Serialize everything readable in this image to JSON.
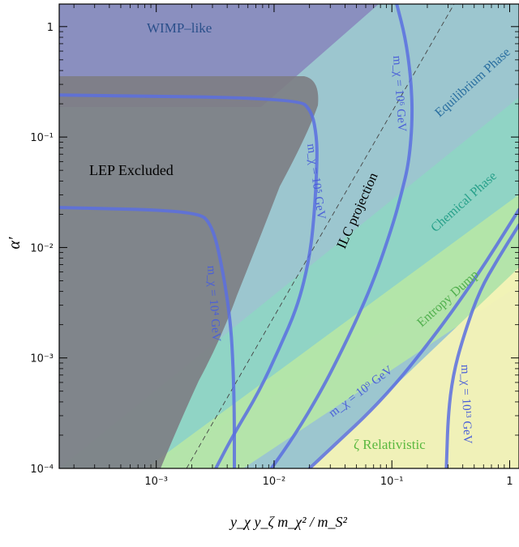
{
  "chart_data": {
    "type": "area",
    "xscale": "log",
    "yscale": "log",
    "xlim": [
      0.00015,
      1.2
    ],
    "ylim": [
      0.0001,
      1.6
    ],
    "xlabel": "y_χ y_ζ m_χ² / m_S²",
    "ylabel": "α′",
    "x_ticks": [
      "10⁻³",
      "10⁻²",
      "10⁻¹",
      "1"
    ],
    "y_ticks": [
      "10⁻⁴",
      "10⁻³",
      "10⁻²",
      "10⁻¹",
      "1"
    ],
    "regions": [
      {
        "name": "WIMP–like",
        "color": "#8a8fbf"
      },
      {
        "name": "LEP Excluded",
        "color": "#7d7d83"
      },
      {
        "name": "Equilibrium Phase",
        "color": "#9cc6cf"
      },
      {
        "name": "Chemical Phase",
        "color": "#8fd5c4"
      },
      {
        "name": "Entropy Dump",
        "color": "#b5e6a8"
      },
      {
        "name": "ζ Relativistic",
        "color": "#f4f3b6"
      }
    ],
    "annotations": [
      {
        "text": "ILC projection",
        "style": "dashed"
      }
    ],
    "series": [
      {
        "name": "m_χ = 10⁴ GeV",
        "points": [
          [
            0.00015,
            0.023
          ],
          [
            0.0022,
            0.0215
          ],
          [
            0.003,
            0.016
          ],
          [
            0.0037,
            0.006
          ],
          [
            0.0043,
            0.002
          ],
          [
            0.0045,
            0.0008
          ],
          [
            0.0046,
            0.0003
          ],
          [
            0.0046,
            0.0001
          ]
        ]
      },
      {
        "name": "m_χ = 10⁵ GeV",
        "points": [
          [
            0.00015,
            0.24
          ],
          [
            0.016,
            0.225
          ],
          [
            0.021,
            0.17
          ],
          [
            0.023,
            0.1
          ],
          [
            0.0232,
            0.06
          ],
          [
            0.022,
            0.02
          ],
          [
            0.02,
            0.008
          ],
          [
            0.016,
            0.003
          ],
          [
            0.011,
            0.0012
          ],
          [
            0.0075,
            0.0005
          ],
          [
            0.0045,
            0.0002
          ],
          [
            0.0032,
            0.0001
          ]
        ]
      },
      {
        "name": "m_χ = 10⁶ GeV",
        "points": [
          [
            0.11,
            1.6
          ],
          [
            0.13,
            0.8
          ],
          [
            0.145,
            0.35
          ],
          [
            0.15,
            0.15
          ],
          [
            0.14,
            0.06
          ],
          [
            0.12,
            0.03
          ],
          [
            0.1,
            0.015
          ],
          [
            0.07,
            0.005
          ],
          [
            0.05,
            0.0022
          ],
          [
            0.035,
            0.001
          ],
          [
            0.025,
            0.0005
          ],
          [
            0.015,
            0.0002
          ],
          [
            0.0095,
            0.0001
          ]
        ]
      },
      {
        "name": "m_χ = 10⁹ GeV",
        "points": [
          [
            1.2,
            0.022
          ],
          [
            0.5,
            0.005
          ],
          [
            0.2,
            0.0013
          ],
          [
            0.08,
            0.0004
          ],
          [
            0.03,
            0.00015
          ],
          [
            0.02,
            0.0001
          ]
        ]
      },
      {
        "name": "m_χ = 10¹³ GeV",
        "points": [
          [
            1.2,
            0.016
          ],
          [
            0.8,
            0.008
          ],
          [
            0.55,
            0.004
          ],
          [
            0.4,
            0.0015
          ],
          [
            0.33,
            0.0007
          ],
          [
            0.3,
            0.0003
          ],
          [
            0.29,
            0.0001
          ]
        ]
      }
    ]
  },
  "labels": {
    "wimp": "WIMP–like",
    "lep": "LEP Excluded",
    "equilibrium": "Equilibrium Phase",
    "chemical": "Chemical Phase",
    "entropy": "Entropy Dump",
    "relativistic": "ζ Relativistic",
    "ilc": "ILC projection",
    "m4": "m_χ = 10⁴ GeV",
    "m5": "m_χ = 10⁵ GeV",
    "m6": "m_χ = 10⁶ GeV",
    "m9": "m_χ = 10⁹ GeV",
    "m13": "m_χ = 10¹³ GeV"
  },
  "colors": {
    "curve": "#5a6fe0",
    "wimp": "#8a8fbf",
    "lep": "#7d7d83",
    "equilibrium": "#9cc6cf",
    "chemical": "#8fd5c4",
    "entropy": "#b5e6a8",
    "relativistic": "#f4f3b6",
    "wimp_text": "#2a4f8a",
    "eq_text": "#2a6fa0",
    "chem_text": "#27a08a",
    "ent_text": "#52b04f",
    "rel_text": "#5ab83f"
  }
}
